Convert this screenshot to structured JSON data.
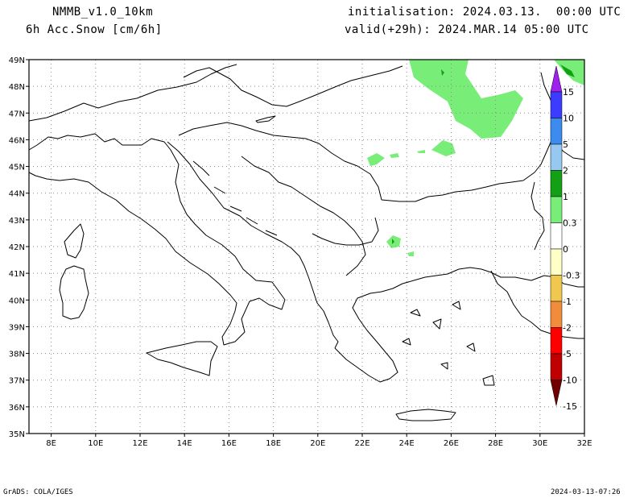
{
  "header": {
    "model": "NMMB_v1.0_10km",
    "variable": "6h Acc.Snow [cm/6h]",
    "init": "initialisation: 2024.03.13.  00:00 UTC",
    "valid": "valid(+29h): 2024.MAR.14 05:00 UTC"
  },
  "axes": {
    "lat_labels": [
      "49N",
      "48N",
      "47N",
      "46N",
      "45N",
      "44N",
      "43N",
      "42N",
      "41N",
      "40N",
      "39N",
      "38N",
      "37N",
      "36N",
      "35N"
    ],
    "lon_labels": [
      "8E",
      "10E",
      "12E",
      "14E",
      "16E",
      "18E",
      "20E",
      "22E",
      "24E",
      "26E",
      "28E",
      "30E",
      "32E"
    ]
  },
  "colorbar": {
    "labels": [
      "15",
      "10",
      "5",
      "2",
      "1",
      "0.3",
      "0",
      "-0.3",
      "-1",
      "-2",
      "-5",
      "-10",
      "-15"
    ],
    "colors": [
      "#a020f0",
      "#3c3cff",
      "#3c8cf0",
      "#96c8f0",
      "#14a014",
      "#78ee78",
      "#ffffff",
      "#ffffc8",
      "#f0c850",
      "#f08c3c",
      "#ff0000",
      "#c00000",
      "#700000"
    ]
  },
  "footer": {
    "left": "GrADS: COLA/IGES",
    "right": "2024-03-13-07:26"
  }
}
